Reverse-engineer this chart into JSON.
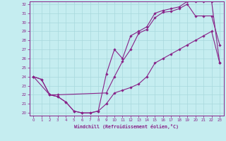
{
  "xlabel": "Windchill (Refroidissement éolien,°C)",
  "xlim": [
    -0.5,
    23.5
  ],
  "ylim": [
    19.7,
    32.3
  ],
  "xticks": [
    0,
    1,
    2,
    3,
    4,
    5,
    6,
    7,
    8,
    9,
    10,
    11,
    12,
    13,
    14,
    15,
    16,
    17,
    18,
    19,
    20,
    21,
    22,
    23
  ],
  "yticks": [
    20,
    21,
    22,
    23,
    24,
    25,
    26,
    27,
    28,
    29,
    30,
    31,
    32
  ],
  "bg_color": "#c5edf0",
  "line_color": "#882288",
  "grid_color": "#a8d8dc",
  "line1_x": [
    0,
    1,
    2,
    3,
    4,
    5,
    6,
    7,
    8,
    9,
    10,
    11,
    12,
    13,
    14,
    15,
    16,
    17,
    18,
    19,
    20,
    21,
    22,
    23
  ],
  "line1_y": [
    24.0,
    23.7,
    22.0,
    21.8,
    21.2,
    20.2,
    20.0,
    20.0,
    20.2,
    21.0,
    22.2,
    22.5,
    22.8,
    23.2,
    24.0,
    25.5,
    26.0,
    26.5,
    27.0,
    27.5,
    28.0,
    28.5,
    29.0,
    25.5
  ],
  "line2_x": [
    0,
    2,
    3,
    9,
    10,
    11,
    12,
    13,
    14,
    15,
    16,
    17,
    18,
    19,
    20,
    21,
    22,
    23
  ],
  "line2_y": [
    24.0,
    22.0,
    22.0,
    22.2,
    24.0,
    25.7,
    27.0,
    28.8,
    29.2,
    30.5,
    31.1,
    31.2,
    31.5,
    32.0,
    30.7,
    30.7,
    30.7,
    27.5
  ],
  "line3_x": [
    0,
    1,
    2,
    3,
    4,
    5,
    6,
    7,
    8,
    9,
    10,
    11,
    12,
    13,
    14,
    15,
    16,
    17,
    18,
    19,
    20,
    21,
    22,
    23
  ],
  "line3_y": [
    24.0,
    23.7,
    22.0,
    21.8,
    21.2,
    20.2,
    20.0,
    20.0,
    20.2,
    24.3,
    27.0,
    26.0,
    28.5,
    29.0,
    29.5,
    31.0,
    31.3,
    31.5,
    31.7,
    32.3,
    32.3,
    32.3,
    32.3,
    25.5
  ]
}
